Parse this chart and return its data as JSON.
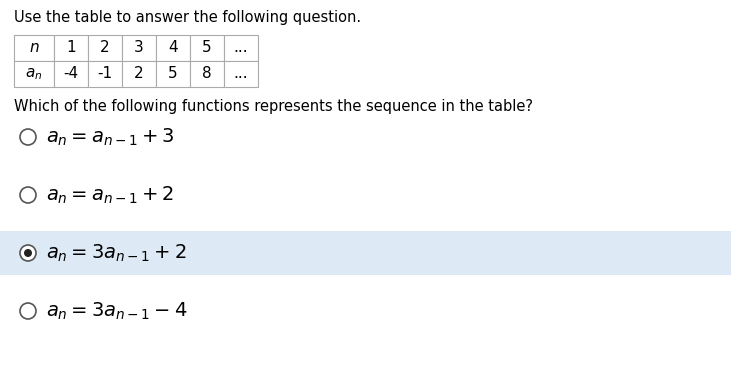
{
  "title_text": "Use the table to answer the following question.",
  "question_text": "Which of the following functions represents the sequence in the table?",
  "table_headers": [
    "n",
    "1",
    "2",
    "3",
    "4",
    "5",
    "..."
  ],
  "table_row2": [
    "an",
    "-4",
    "-1",
    "2",
    "5",
    "8",
    "..."
  ],
  "options_math": [
    "$a_n = a_{n-1} + 3$",
    "$a_n = a_{n-1} + 2$",
    "$a_n = 3a_{n-1} + 2$",
    "$a_n = 3a_{n-1} - 4$"
  ],
  "selected_index": 2,
  "bg_color": "#ffffff",
  "selected_bg_color": "#ddeaf5",
  "border_color": "#aaaaaa",
  "text_color": "#000000",
  "title_fontsize": 10.5,
  "question_fontsize": 10.5,
  "table_fontsize": 11,
  "option_fontsize": 14
}
